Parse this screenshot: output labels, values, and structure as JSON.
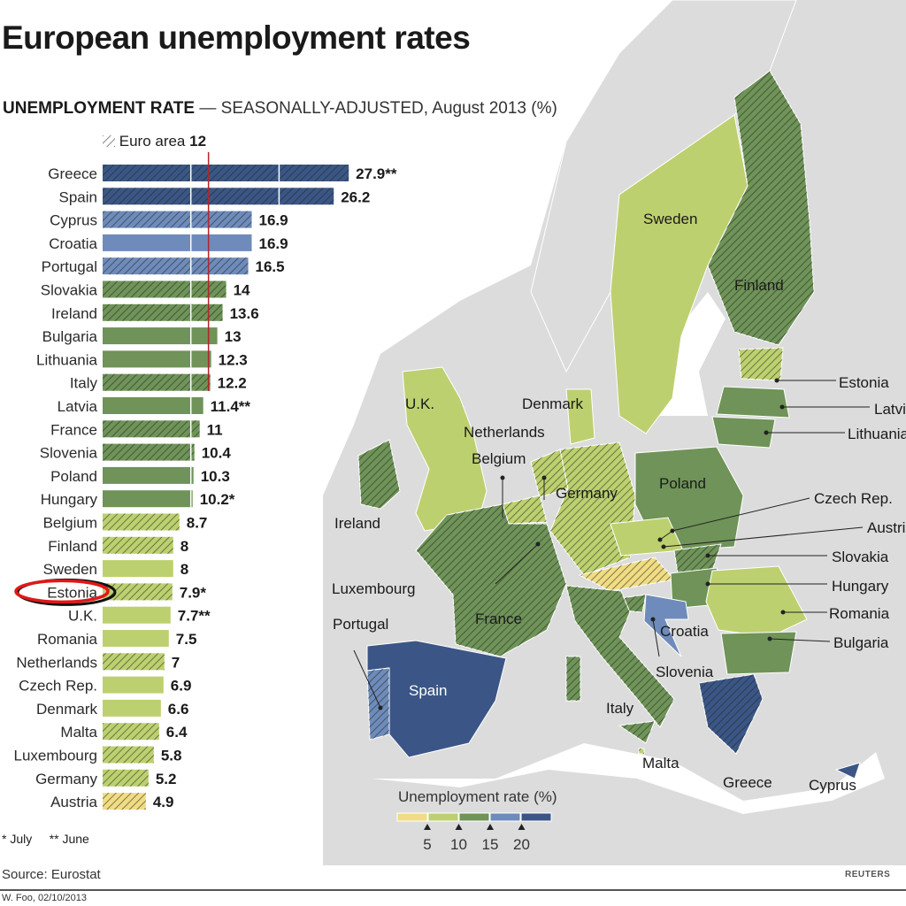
{
  "title": "European unemployment rates",
  "subtitle": {
    "bold": "UNEMPLOYMENT RATE",
    "rest": " — SEASONALLY-ADJUSTED, August 2013 (%)"
  },
  "euro_area": {
    "label": "Euro area",
    "value": "12"
  },
  "footnotes": {
    "july": "* July",
    "june": "** June"
  },
  "source": "Source: Eurostat",
  "byline": "W. Foo, 02/10/2013",
  "brand": "REUTERS",
  "colors": {
    "yellow": "#f1dc83",
    "lightgreen": "#bdd06f",
    "green": "#6f9358",
    "lightblue": "#6e8bbb",
    "darkblue": "#3b5686",
    "euro_line": "#b0252a",
    "annotation": "#e01818"
  },
  "chart_data": {
    "type": "bar",
    "orientation": "horizontal",
    "title": "UNEMPLOYMENT RATE — SEASONALLY-ADJUSTED, August 2013 (%)",
    "xlim": [
      0,
      30
    ],
    "gridlines": [
      10,
      20
    ],
    "reference_line": {
      "label": "Euro area",
      "value": 12
    },
    "categories": [
      "Greece",
      "Spain",
      "Cyprus",
      "Croatia",
      "Portugal",
      "Slovakia",
      "Ireland",
      "Bulgaria",
      "Lithuania",
      "Italy",
      "Latvia",
      "France",
      "Slovenia",
      "Poland",
      "Hungary",
      "Belgium",
      "Finland",
      "Sweden",
      "Estonia",
      "U.K.",
      "Romania",
      "Netherlands",
      "Czech Rep.",
      "Denmark",
      "Malta",
      "Luxembourg",
      "Germany",
      "Austria"
    ],
    "values": [
      27.9,
      26.2,
      16.9,
      16.9,
      16.5,
      14,
      13.6,
      13,
      12.3,
      12.2,
      11.4,
      11,
      10.4,
      10.3,
      10.2,
      8.7,
      8,
      8,
      7.9,
      7.7,
      7.5,
      7,
      6.9,
      6.6,
      6.4,
      5.8,
      5.2,
      4.9
    ],
    "value_labels": [
      "27.9**",
      "26.2",
      "16.9",
      "16.9",
      "16.5",
      "14",
      "13.6",
      "13",
      "12.3",
      "12.2",
      "11.4**",
      "11",
      "10.4",
      "10.3",
      "10.2*",
      "8.7",
      "8",
      "8",
      "7.9*",
      "7.7**",
      "7.5",
      "7",
      "6.9",
      "6.6",
      "6.4",
      "5.8",
      "5.2",
      "4.9"
    ],
    "euro_area_member": [
      true,
      true,
      true,
      false,
      true,
      true,
      true,
      false,
      false,
      true,
      false,
      true,
      true,
      false,
      false,
      true,
      true,
      false,
      true,
      false,
      false,
      true,
      false,
      false,
      true,
      true,
      true,
      true
    ],
    "highlighted": "Estonia"
  },
  "map": {
    "legend": {
      "title": "Unemployment rate (%)",
      "ticks": [
        "5",
        "10",
        "15",
        "20"
      ]
    },
    "labels": {
      "sweden": "Sweden",
      "finland": "Finland",
      "estonia": "Estonia",
      "latvia": "Latvia",
      "lithuania": "Lithuania",
      "uk": "U.K.",
      "denmark": "Denmark",
      "netherlands": "Netherlands",
      "belgium": "Belgium",
      "germany": "Germany",
      "poland": "Poland",
      "ireland": "Ireland",
      "czech": "Czech Rep.",
      "austria": "Austria",
      "slovakia": "Slovakia",
      "luxembourg": "Luxembourg",
      "hungary": "Hungary",
      "france": "France",
      "romania": "Romania",
      "croatia": "Croatia",
      "portugal": "Portugal",
      "bulgaria": "Bulgaria",
      "spain": "Spain",
      "slovenia": "Slovenia",
      "italy": "Italy",
      "malta": "Malta",
      "greece": "Greece",
      "cyprus": "Cyprus"
    }
  }
}
